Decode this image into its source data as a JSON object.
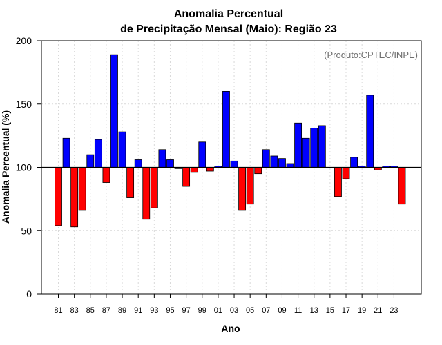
{
  "chart_data": {
    "type": "bar",
    "title": [
      "Anomalia Percentual",
      "de Precipitação Mensal (Maio): Região 23"
    ],
    "xlabel": "Ano",
    "ylabel": "Anomalia Percentual (%)",
    "credit": "(Produto:CPTEC/INPE)",
    "ylim": [
      0,
      200
    ],
    "yticks": [
      0,
      50,
      100,
      150,
      200
    ],
    "baseline": 100,
    "grid": true,
    "colors": {
      "above": "#0000ff",
      "below": "#ff0000",
      "edge": "#000000",
      "grid": "#d9d9d9"
    },
    "categories": [
      "1981",
      "1982",
      "1983",
      "1984",
      "1985",
      "1986",
      "1987",
      "1988",
      "1989",
      "1990",
      "1991",
      "1992",
      "1993",
      "1994",
      "1995",
      "1996",
      "1997",
      "1998",
      "1999",
      "2000",
      "2001",
      "2002",
      "2003",
      "2004",
      "2005",
      "2006",
      "2007",
      "2008",
      "2009",
      "2010",
      "2011",
      "2012",
      "2013",
      "2014",
      "2015",
      "2016",
      "2017",
      "2018",
      "2019",
      "2020",
      "2021",
      "2022",
      "2023",
      "2024"
    ],
    "xtick_labels": [
      "81",
      "83",
      "85",
      "87",
      "89",
      "91",
      "93",
      "95",
      "97",
      "99",
      "01",
      "03",
      "05",
      "07",
      "09",
      "11",
      "13",
      "15",
      "17",
      "19",
      "21",
      "23"
    ],
    "values": [
      54,
      123,
      53,
      66,
      110,
      122,
      88,
      189,
      128,
      76,
      106,
      59,
      68,
      114,
      106,
      99,
      85,
      96,
      120,
      97,
      101,
      160,
      105,
      66,
      71,
      95,
      114,
      109,
      107,
      103,
      135,
      123,
      131,
      133,
      100,
      77,
      91,
      108,
      101,
      157,
      98,
      101,
      101,
      71
    ]
  }
}
